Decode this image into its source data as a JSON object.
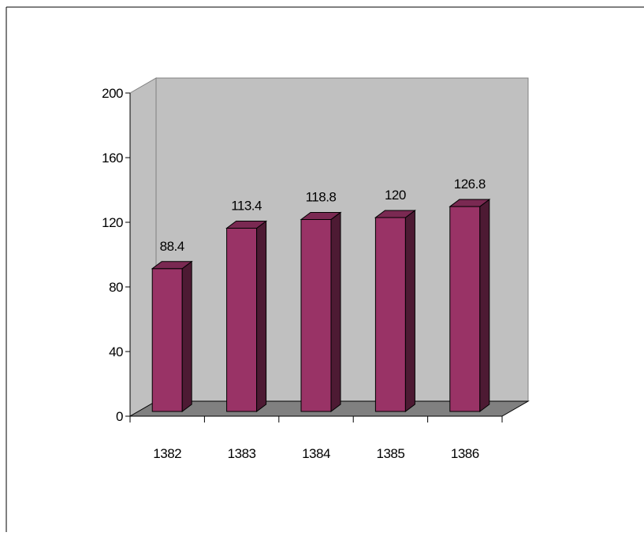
{
  "chart_data": {
    "type": "bar",
    "style": "3d-column",
    "categories": [
      "1382",
      "1383",
      "1384",
      "1385",
      "1386"
    ],
    "values": [
      88.4,
      113.4,
      118.8,
      120,
      126.8
    ],
    "data_labels": [
      "88.4",
      "113.4",
      "118.8",
      "120",
      "126.8"
    ],
    "ylim": [
      0,
      200
    ],
    "yticks": [
      0,
      40,
      80,
      120,
      160,
      200
    ],
    "ytick_labels": [
      "0",
      "40",
      "80",
      "120",
      "160",
      "200"
    ],
    "title": "",
    "xlabel": "",
    "ylabel": "",
    "legend": "none",
    "grid": false
  },
  "colors": {
    "bar_front": "#993366",
    "bar_side": "#4d1a33",
    "bar_top": "#7a2952",
    "back_wall": "#c0c0c0",
    "side_wall": "#c0c0c0",
    "floor": "#808080",
    "axis": "#000000"
  }
}
